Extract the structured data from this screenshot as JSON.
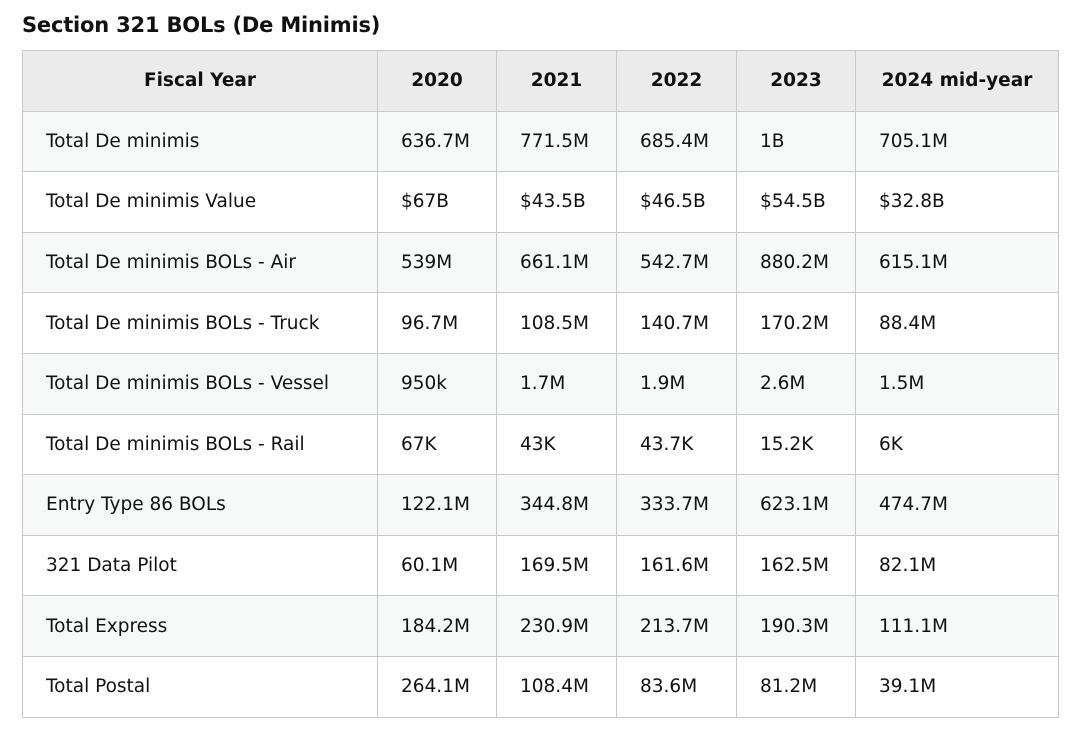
{
  "title": "Section 321 BOLs (De Minimis)",
  "table": {
    "headers": [
      "Fiscal Year",
      "2020",
      "2021",
      "2022",
      "2023",
      "2024 mid-year"
    ],
    "rows": [
      [
        "Total De minimis",
        "636.7M",
        "771.5M",
        "685.4M",
        "1B",
        "705.1M"
      ],
      [
        "Total De minimis Value",
        "$67B",
        "$43.5B",
        "$46.5B",
        "$54.5B",
        "$32.8B"
      ],
      [
        "Total De minimis BOLs - Air",
        "539M",
        "661.1M",
        "542.7M",
        "880.2M",
        "615.1M"
      ],
      [
        "Total De minimis BOLs - Truck",
        "96.7M",
        "108.5M",
        "140.7M",
        "170.2M",
        "88.4M"
      ],
      [
        "Total De minimis BOLs - Vessel",
        "950k",
        "1.7M",
        "1.9M",
        "2.6M",
        "1.5M"
      ],
      [
        "Total De minimis BOLs - Rail",
        "67K",
        "43K",
        "43.7K",
        "15.2K",
        "6K"
      ],
      [
        "Entry Type 86 BOLs",
        "122.1M",
        "344.8M",
        "333.7M",
        "623.1M",
        "474.7M"
      ],
      [
        "321 Data Pilot",
        "60.1M",
        "169.5M",
        "161.6M",
        "162.5M",
        "82.1M"
      ],
      [
        "Total Express",
        "184.2M",
        "230.9M",
        "213.7M",
        "190.3M",
        "111.1M"
      ],
      [
        "Total Postal",
        "264.1M",
        "108.4M",
        "83.6M",
        "81.2M",
        "39.1M"
      ]
    ]
  }
}
